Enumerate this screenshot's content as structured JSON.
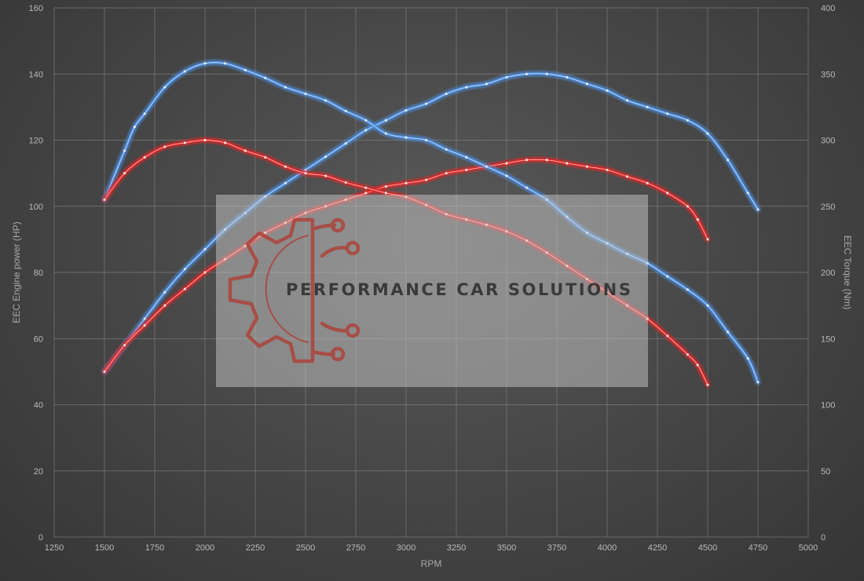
{
  "chart_data": {
    "type": "line",
    "xlabel": "RPM",
    "ylabel_left": "EEC Engine power (HP)",
    "ylabel_right": "EEC Torque (Nm)",
    "xlim": [
      1250,
      5000
    ],
    "ylim_left": [
      0,
      160
    ],
    "ylim_right": [
      0,
      400
    ],
    "x_ticks": [
      1250,
      1500,
      1750,
      2000,
      2250,
      2500,
      2750,
      3000,
      3250,
      3500,
      3750,
      4000,
      4250,
      4500,
      4750,
      5000
    ],
    "y_ticks_left": [
      0,
      20,
      40,
      60,
      80,
      100,
      120,
      140,
      160
    ],
    "y_ticks_right": [
      0,
      50,
      100,
      150,
      200,
      250,
      300,
      350,
      400
    ],
    "grid": true,
    "series": [
      {
        "axis": "left",
        "color": "#4d8fe0",
        "x": [
          1500,
          1600,
          1700,
          1800,
          1900,
          2000,
          2100,
          2200,
          2300,
          2400,
          2500,
          2600,
          2700,
          2800,
          2900,
          3000,
          3100,
          3200,
          3300,
          3400,
          3500,
          3600,
          3700,
          3800,
          3900,
          4000,
          4100,
          4200,
          4300,
          4400,
          4500,
          4600,
          4700,
          4750
        ],
        "y": [
          50,
          58,
          66,
          74,
          81,
          87,
          93,
          98,
          103,
          107,
          111,
          115,
          119,
          123,
          126,
          129,
          131,
          134,
          136,
          137,
          139,
          140,
          140,
          139,
          137,
          135,
          132,
          130,
          128,
          126,
          122,
          114,
          104,
          99
        ]
      },
      {
        "axis": "left",
        "color": "#e02828",
        "x": [
          1500,
          1600,
          1700,
          1800,
          1900,
          2000,
          2100,
          2200,
          2300,
          2400,
          2500,
          2600,
          2700,
          2800,
          2900,
          3000,
          3100,
          3200,
          3300,
          3400,
          3500,
          3600,
          3700,
          3800,
          3900,
          4000,
          4100,
          4200,
          4300,
          4400,
          4450,
          4500
        ],
        "y": [
          50,
          58,
          64,
          70,
          75,
          80,
          84,
          88,
          92,
          95,
          98,
          100,
          102,
          104,
          106,
          107,
          108,
          110,
          111,
          112,
          113,
          114,
          114,
          113,
          112,
          111,
          109,
          107,
          104,
          100,
          96,
          90
        ]
      },
      {
        "axis": "right",
        "color": "#4d8fe0",
        "x": [
          1500,
          1600,
          1650,
          1700,
          1800,
          1900,
          2000,
          2100,
          2200,
          2300,
          2400,
          2500,
          2600,
          2700,
          2800,
          2900,
          3000,
          3100,
          3200,
          3300,
          3400,
          3500,
          3600,
          3700,
          3800,
          3900,
          4000,
          4100,
          4200,
          4300,
          4400,
          4500,
          4600,
          4700,
          4750
        ],
        "y": [
          255,
          292,
          310,
          320,
          340,
          352,
          358,
          358,
          353,
          347,
          340,
          335,
          330,
          322,
          315,
          305,
          302,
          300,
          293,
          287,
          280,
          273,
          264,
          255,
          242,
          230,
          222,
          214,
          207,
          197,
          187,
          175,
          155,
          135,
          117
        ]
      },
      {
        "axis": "right",
        "color": "#e02828",
        "x": [
          1500,
          1600,
          1700,
          1800,
          1900,
          2000,
          2100,
          2200,
          2300,
          2400,
          2500,
          2600,
          2700,
          2800,
          2900,
          3000,
          3100,
          3200,
          3300,
          3400,
          3500,
          3600,
          3700,
          3800,
          3900,
          4000,
          4100,
          4200,
          4300,
          4400,
          4450,
          4500
        ],
        "y": [
          255,
          275,
          287,
          295,
          298,
          300,
          298,
          292,
          287,
          280,
          275,
          273,
          268,
          264,
          260,
          257,
          251,
          244,
          240,
          236,
          231,
          224,
          215,
          205,
          195,
          185,
          175,
          165,
          152,
          138,
          130,
          115
        ]
      }
    ]
  },
  "watermark": {
    "text": "PERFORMANCE CAR SOLUTIONS",
    "logo_color": "#c0392b"
  }
}
